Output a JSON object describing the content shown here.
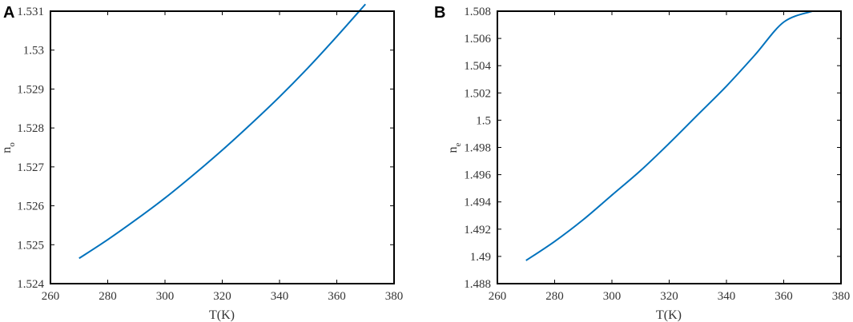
{
  "chart_data": [
    {
      "panel_label": "A",
      "type": "line",
      "xlabel": "T(K)",
      "ylabel": "n",
      "ylabel_subscript": "o",
      "xlim": [
        260,
        380
      ],
      "ylim": [
        1.524,
        1.531
      ],
      "xticks": [
        "260",
        "280",
        "300",
        "320",
        "340",
        "360",
        "380"
      ],
      "yticks": [
        "1.524",
        "1.525",
        "1.526",
        "1.527",
        "1.528",
        "1.529",
        "1.53",
        "1.531"
      ],
      "grid": false,
      "series": [
        {
          "color": "#0072BD",
          "x": [
            270,
            280,
            290,
            300,
            310,
            320,
            330,
            340,
            350,
            360,
            370
          ],
          "y": [
            1.52465,
            1.52513,
            1.52565,
            1.5262,
            1.5268,
            1.52743,
            1.5281,
            1.5288,
            1.52955,
            1.53035,
            1.53118
          ]
        }
      ]
    },
    {
      "panel_label": "B",
      "type": "line",
      "xlabel": "T(K)",
      "ylabel": "n",
      "ylabel_subscript": "e",
      "xlim": [
        260,
        380
      ],
      "ylim": [
        1.488,
        1.508
      ],
      "xticks": [
        "260",
        "280",
        "300",
        "320",
        "340",
        "360",
        "380"
      ],
      "yticks": [
        "1.488",
        "1.49",
        "1.492",
        "1.494",
        "1.496",
        "1.498",
        "1.5",
        "1.502",
        "1.504",
        "1.506",
        "1.508"
      ],
      "grid": false,
      "series": [
        {
          "color": "#0072BD",
          "x": [
            270,
            280,
            290,
            300,
            310,
            320,
            330,
            340,
            350,
            360,
            370
          ],
          "y": [
            1.4897,
            1.4911,
            1.4927,
            1.4945,
            1.4963,
            1.4983,
            1.5004,
            1.5025,
            1.5048,
            1.5072,
            1.508
          ]
        }
      ]
    }
  ]
}
